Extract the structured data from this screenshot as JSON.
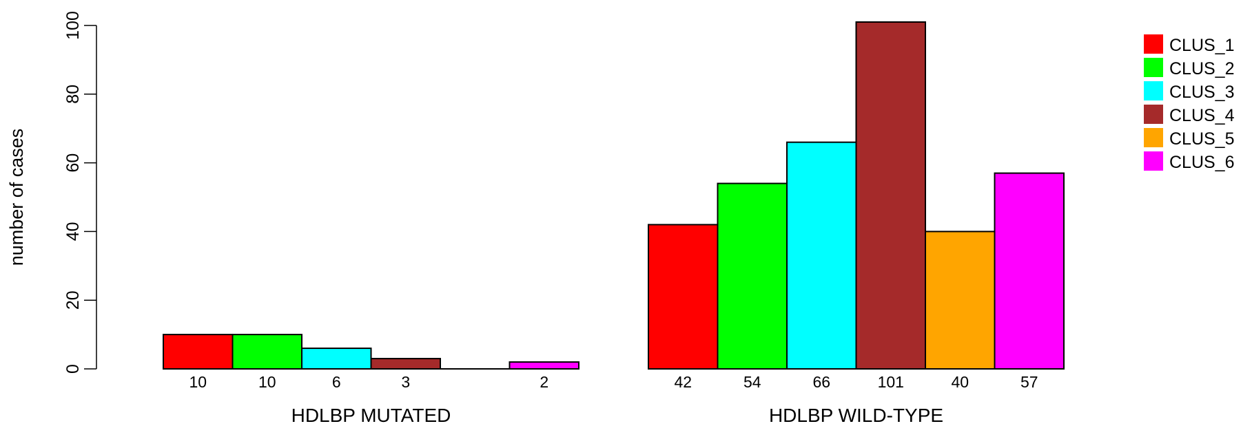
{
  "chart_data": {
    "type": "bar",
    "ylabel": "number of cases",
    "ylim": [
      0,
      100
    ],
    "yticks": [
      0,
      20,
      40,
      60,
      80,
      100
    ],
    "grid": false,
    "legend_position": "top-right",
    "series": [
      {
        "name": "CLUS_1",
        "color": "#ff0000"
      },
      {
        "name": "CLUS_2",
        "color": "#00ff00"
      },
      {
        "name": "CLUS_3",
        "color": "#00ffff"
      },
      {
        "name": "CLUS_4",
        "color": "#a52a2a"
      },
      {
        "name": "CLUS_5",
        "color": "#ffa500"
      },
      {
        "name": "CLUS_6",
        "color": "#ff00ff"
      }
    ],
    "groups": [
      {
        "label": "HDLBP MUTATED",
        "values": [
          10,
          10,
          6,
          3,
          0,
          2
        ],
        "value_labels": [
          "10",
          "10",
          "6",
          "3",
          "",
          "2"
        ]
      },
      {
        "label": "HDLBP WILD-TYPE",
        "values": [
          42,
          54,
          66,
          101,
          40,
          57
        ],
        "value_labels": [
          "42",
          "54",
          "66",
          "101",
          "40",
          "57"
        ]
      }
    ]
  }
}
